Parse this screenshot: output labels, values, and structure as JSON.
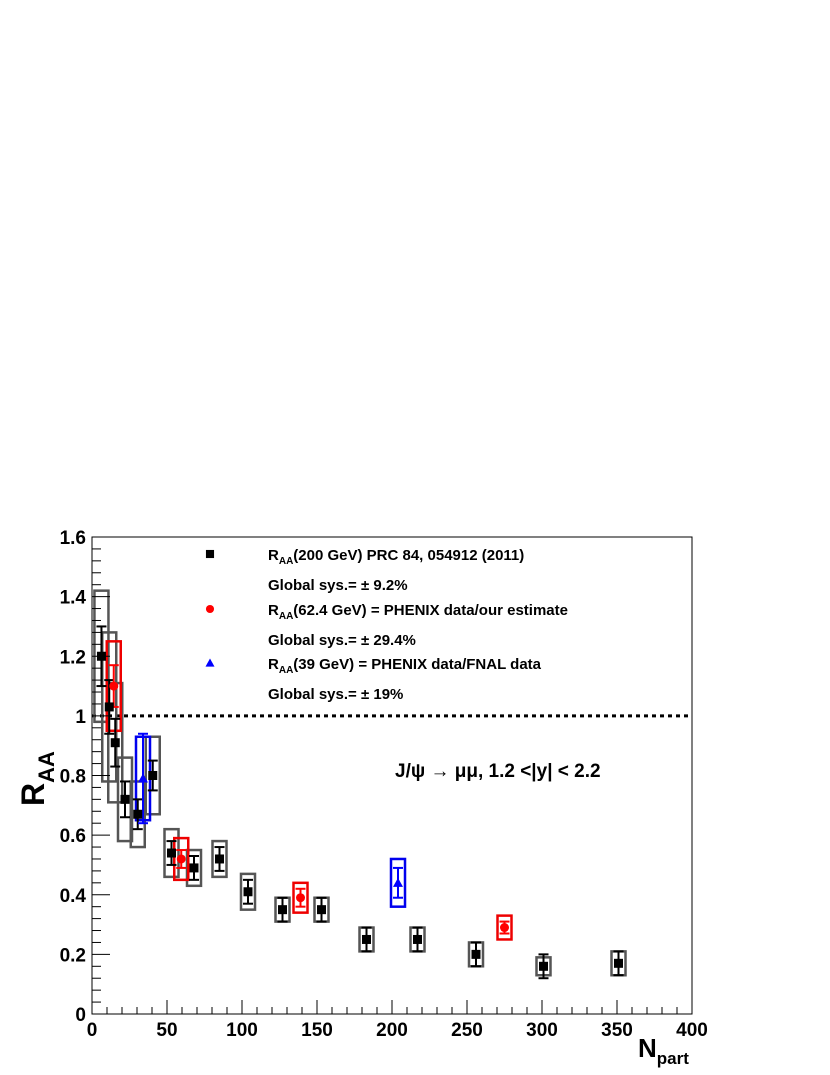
{
  "chart_data": {
    "type": "scatter",
    "xlabel": "N",
    "xlabel_sub": "part",
    "ylabel": "R",
    "ylabel_sub": "AA",
    "xlim": [
      0,
      400
    ],
    "ylim": [
      0,
      1.6
    ],
    "x_ticks": [
      "0",
      "50",
      "100",
      "150",
      "200",
      "250",
      "300",
      "350",
      "400"
    ],
    "y_ticks": [
      "0",
      "0.2",
      "0.4",
      "0.6",
      "0.8",
      "1",
      "1.2",
      "1.4",
      "1.6"
    ],
    "reference_line": {
      "y": 1,
      "style": "dotted"
    },
    "annotation": "J/ψ → μμ, 1.2 <|y| < 2.2",
    "series": [
      {
        "legend_prefix": "R",
        "legend_sub": "AA",
        "legend_suffix": "(200 GeV) PRC 84, 054912 (2011)",
        "global_sys": "Global sys.= ± 9.2%",
        "marker": "square",
        "color": "#000000",
        "box_color": "#555555",
        "points": [
          {
            "x": 6.3,
            "y": 1.2,
            "stat": 0.1,
            "sys": 0.22
          },
          {
            "x": 11.5,
            "y": 1.03,
            "stat": 0.09,
            "sys": 0.25
          },
          {
            "x": 15.5,
            "y": 0.91,
            "stat": 0.08,
            "sys": 0.2
          },
          {
            "x": 22.0,
            "y": 0.72,
            "stat": 0.06,
            "sys": 0.14
          },
          {
            "x": 30.5,
            "y": 0.67,
            "stat": 0.05,
            "sys": 0.11
          },
          {
            "x": 40.5,
            "y": 0.8,
            "stat": 0.05,
            "sys": 0.13
          },
          {
            "x": 53.0,
            "y": 0.54,
            "stat": 0.04,
            "sys": 0.08
          },
          {
            "x": 68.0,
            "y": 0.49,
            "stat": 0.04,
            "sys": 0.06
          },
          {
            "x": 85.0,
            "y": 0.52,
            "stat": 0.04,
            "sys": 0.06
          },
          {
            "x": 104.0,
            "y": 0.41,
            "stat": 0.04,
            "sys": 0.06
          },
          {
            "x": 127.0,
            "y": 0.35,
            "stat": 0.04,
            "sys": 0.04
          },
          {
            "x": 153.0,
            "y": 0.35,
            "stat": 0.04,
            "sys": 0.04
          },
          {
            "x": 183.0,
            "y": 0.25,
            "stat": 0.04,
            "sys": 0.04
          },
          {
            "x": 217.0,
            "y": 0.25,
            "stat": 0.04,
            "sys": 0.04
          },
          {
            "x": 256.0,
            "y": 0.2,
            "stat": 0.04,
            "sys": 0.04
          },
          {
            "x": 301.0,
            "y": 0.16,
            "stat": 0.04,
            "sys": 0.03
          },
          {
            "x": 351.0,
            "y": 0.17,
            "stat": 0.04,
            "sys": 0.04
          }
        ]
      },
      {
        "legend_prefix": "R",
        "legend_sub": "AA",
        "legend_suffix": "(62.4 GeV) = PHENIX data/our estimate",
        "global_sys": "Global sys.= ± 29.4%",
        "marker": "circle",
        "color": "#ff0000",
        "box_color": "#ee0000",
        "points": [
          {
            "x": 14.5,
            "y": 1.1,
            "stat": 0.07,
            "sys": 0.15
          },
          {
            "x": 59.5,
            "y": 0.52,
            "stat": 0.03,
            "sys": 0.07
          },
          {
            "x": 139.0,
            "y": 0.39,
            "stat": 0.03,
            "sys": 0.05
          },
          {
            "x": 275.0,
            "y": 0.29,
            "stat": 0.02,
            "sys": 0.04
          }
        ]
      },
      {
        "legend_prefix": "R",
        "legend_sub": "AA",
        "legend_suffix": "(39 GeV) = PHENIX data/FNAL data",
        "global_sys": "Global sys.= ± 19%",
        "marker": "triangle",
        "color": "#0000ff",
        "box_color": "#0000ee",
        "points": [
          {
            "x": 34.0,
            "y": 0.79,
            "stat": 0.15,
            "sys": 0.14
          },
          {
            "x": 204.0,
            "y": 0.44,
            "stat": 0.05,
            "sys": 0.08
          }
        ]
      }
    ]
  }
}
